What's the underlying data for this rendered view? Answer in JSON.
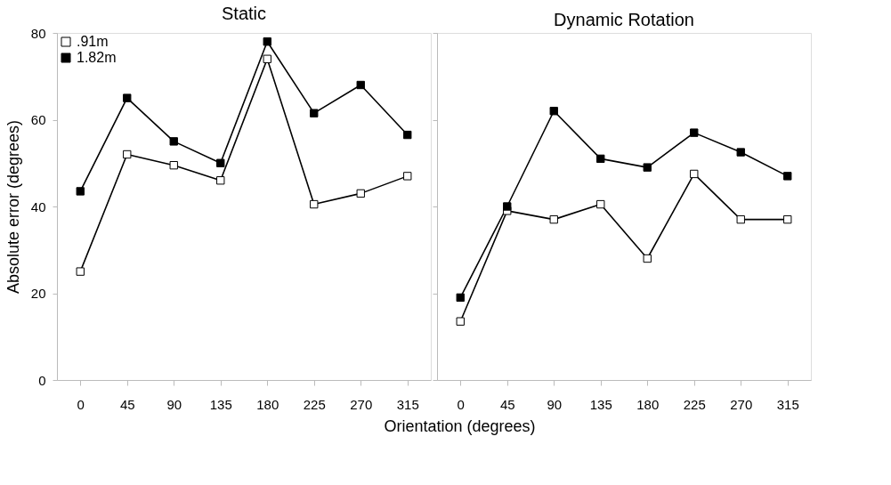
{
  "chart_data": [
    {
      "type": "line",
      "title": "Static",
      "ylabel": "Absolute error (degrees)",
      "xlabel": "Orientation (degrees)",
      "categories": [
        "0",
        "45",
        "90",
        "135",
        "180",
        "225",
        "270",
        "315"
      ],
      "ylim": [
        0,
        80
      ],
      "yticks": [
        0,
        20,
        40,
        60,
        80
      ],
      "grid": false,
      "marker": "square",
      "legend": "top left",
      "series": [
        {
          "name": ".91m",
          "color": "#ffffff",
          "values": [
            25,
            52,
            49.5,
            46,
            74,
            40.5,
            43,
            47
          ]
        },
        {
          "name": "1.82m",
          "color": "#000000",
          "values": [
            43.5,
            65,
            55,
            50,
            78,
            61.5,
            68,
            56.5
          ]
        }
      ]
    },
    {
      "type": "line",
      "title": "Dynamic Rotation",
      "categories": [
        "0",
        "45",
        "90",
        "135",
        "180",
        "225",
        "270",
        "315"
      ],
      "ylim": [
        0,
        80
      ],
      "yticks": [
        0,
        20,
        40,
        60,
        80
      ],
      "grid": false,
      "marker": "square",
      "legend": false,
      "tick_labels": "x",
      "series": [
        {
          "name": ".91m",
          "color": "#ffffff",
          "values": [
            13.5,
            39,
            37,
            40.5,
            28,
            47.5,
            37,
            37
          ]
        },
        {
          "name": "1.82m",
          "color": "#000000",
          "values": [
            19,
            40,
            62,
            51,
            49,
            57,
            52.5,
            47
          ]
        }
      ]
    }
  ]
}
